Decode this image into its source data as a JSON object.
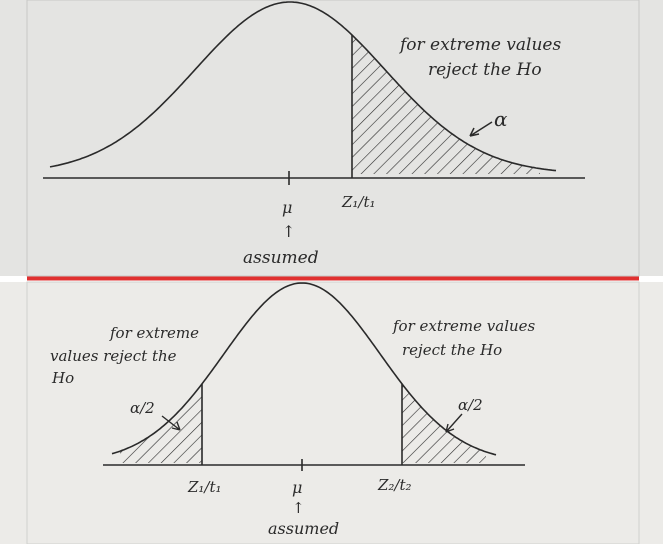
{
  "panels": [
    {
      "id": "one-tailed",
      "note_lines": [
        "for extreme values",
        "reject the Ho"
      ],
      "alpha_label": "α",
      "critical_label": "Z₁/t₁",
      "mean_label": "μ",
      "arrow_glyph": "↑",
      "assumed_label": "assumed"
    },
    {
      "id": "two-tailed",
      "left_note_lines": [
        "for extreme",
        "values reject the",
        "Ho"
      ],
      "right_note_lines": [
        "for extreme values",
        "reject the Ho"
      ],
      "left_alpha_label": "α/2",
      "right_alpha_label": "α/2",
      "left_critical_label": "Z₁/t₁",
      "right_critical_label": "Z₂/t₂",
      "mean_label": "μ",
      "arrow_glyph": "↑",
      "assumed_label": "assumed"
    }
  ],
  "colors": {
    "paper_top": "#e4e4e2",
    "paper_bottom": "#ecebe8",
    "ink": "#2a2a2a",
    "divider": "#e03030"
  }
}
